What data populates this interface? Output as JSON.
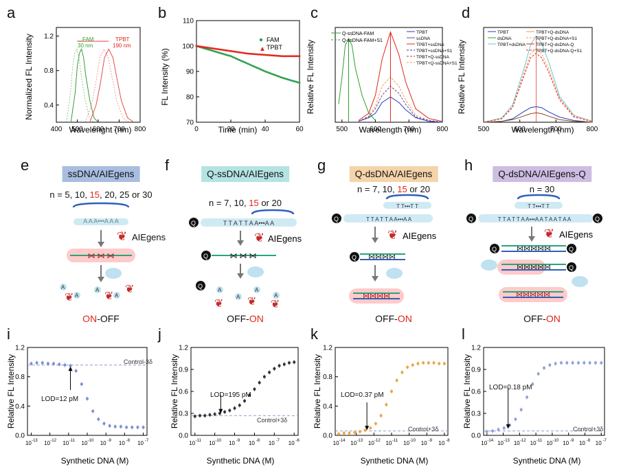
{
  "panels": {
    "a": {
      "label": "a",
      "ylabel": "Normalized FL Intensity",
      "xlabel": "Wavelenght (nm)",
      "xticks": [
        "400",
        "500",
        "600",
        "700",
        "800"
      ],
      "yticks": [
        "0.4",
        "0.8",
        "1.2"
      ],
      "ann_fam": "FAM",
      "ann_fam_nm": "30 nm",
      "ann_tpbt": "TPBT",
      "ann_tpbt_nm": "190 nm"
    },
    "b": {
      "label": "b",
      "ylabel": "FL Intensity (%)",
      "xlabel": "Time (min)",
      "xticks": [
        "0",
        "20",
        "40",
        "60"
      ],
      "yticks": [
        "70",
        "80",
        "90",
        "100",
        "110"
      ],
      "legend": [
        "FAM",
        "TPBT"
      ]
    },
    "c": {
      "label": "c",
      "ylabel": "Relative FL Intensity",
      "xlabel": "Wavelength (nm)",
      "xticks": [
        "500",
        "600",
        "700",
        "800"
      ],
      "legend_left": [
        "Q-ssDNA-FAM",
        "Q-ssDNA-FAM+S1"
      ],
      "legend_right": [
        "TPBT",
        "ssDNA",
        "TPBT+ssDNA",
        "TPBT+ssDNA+S1",
        "TPBT+Q-ssDNA",
        "TPBT+Q-ssDNA+S1"
      ]
    },
    "d": {
      "label": "d",
      "ylabel": "Relative FL Intensity",
      "xlabel": "Wavelength (nm)",
      "xticks": [
        "500",
        "600",
        "700",
        "800"
      ],
      "legend_left": [
        "TPBT",
        "dsDNA",
        "TPBT+dsDNA"
      ],
      "legend_right": [
        "TPBT+Q-dsDNA",
        "TPBT+Q-dsDNA+S1",
        "TPBT+Q-dsDNA-Q",
        "TPBT+Q-dsDNA-Q+S1"
      ]
    },
    "e": {
      "label": "e",
      "title": "ssDNA/AIEgens",
      "n_prefix": "n = 5, 10, ",
      "n_red": "15",
      "n_suffix": ", 20, 25 or 30",
      "seq": "A A A•••A A A",
      "aiegens": "AIEgens",
      "on": "ON",
      "off": "-OFF"
    },
    "f": {
      "label": "f",
      "title": "Q-ssDNA/AIEgens",
      "n_prefix": "n = 7, 10, ",
      "n_red": "15",
      "n_suffix": " or 20",
      "seq": "T T A T T A A•••A A",
      "aiegens": "AIEgens",
      "off": "OFF-",
      "on": "ON"
    },
    "g": {
      "label": "g",
      "title": "Q-dsDNA/AIEgens",
      "n_prefix": "n = 7, 10, ",
      "n_red": "15",
      "n_suffix": " or 20",
      "seq": "T T A T T A A•••A A",
      "top": "T T•••T T",
      "aiegens": "AIEgens",
      "off": "OFF-",
      "on": "ON"
    },
    "h": {
      "label": "h",
      "title": "Q-dsDNA/AIEgens-Q",
      "n_text": "n = 30",
      "seq": "T T A T T A A•••A A T A A T A A",
      "top": "T T•••T T",
      "aiegens": "AIEgens",
      "off": "OFF-",
      "on": "ON"
    },
    "i": {
      "label": "i",
      "ylabel": "Relative FL Intensity",
      "xlabel": "Synthetic DNA (M)",
      "yticks": [
        "0.0",
        "0.4",
        "0.8",
        "1.2"
      ],
      "control": "Control-3δ",
      "lod": "LOD=12 pM"
    },
    "j": {
      "label": "j",
      "ylabel": "Relative FL Intensity",
      "xlabel": "Synthetic DNA (M)",
      "yticks": [
        "0.0",
        "0.3",
        "0.6",
        "0.9",
        "1.2"
      ],
      "control": "Control+3δ",
      "lod": "LOD=195 pM"
    },
    "k": {
      "label": "k",
      "ylabel": "Relative FL Intensity",
      "xlabel": "Synthetic DNA (M)",
      "yticks": [
        "0.0",
        "0.4",
        "0.8",
        "1.2"
      ],
      "control": "Control+3δ",
      "lod": "LOD=0.37 pM"
    },
    "l": {
      "label": "l",
      "ylabel": "Relative FL Intensity",
      "xlabel": "Synthetic DNA (M)",
      "yticks": [
        "0.0",
        "0.3",
        "0.6",
        "0.9",
        "1.2"
      ],
      "control": "Control+3δ",
      "lod": "LOD=0.18 pM"
    }
  },
  "chart_data": [
    {
      "id": "a",
      "type": "line",
      "xlim": [
        400,
        800
      ],
      "ylim": [
        0.2,
        1.3
      ],
      "series": [
        {
          "name": "FAM",
          "color": "#3a9a3a",
          "x": [
            470,
            490,
            500,
            510,
            520,
            530,
            540,
            560,
            580,
            600
          ],
          "y": [
            0.2,
            0.55,
            0.85,
            1.0,
            1.05,
            0.95,
            0.75,
            0.45,
            0.25,
            0.2
          ]
        },
        {
          "name": "TPBT",
          "color": "#e05050",
          "x": [
            560,
            590,
            610,
            630,
            650,
            670,
            690,
            710,
            740,
            770
          ],
          "y": [
            0.2,
            0.4,
            0.65,
            0.95,
            1.05,
            0.95,
            0.7,
            0.45,
            0.25,
            0.2
          ]
        }
      ]
    },
    {
      "id": "b",
      "type": "scatter",
      "xlim": [
        0,
        60
      ],
      "ylim": [
        70,
        110
      ],
      "series": [
        {
          "name": "FAM",
          "color": "#2e9e4e",
          "x": [
            0,
            10,
            20,
            30,
            40,
            50,
            60
          ],
          "y": [
            100,
            98,
            96,
            93,
            90,
            87.5,
            85.5
          ]
        },
        {
          "name": "TPBT",
          "color": "#e0251b",
          "x": [
            0,
            10,
            20,
            30,
            40,
            50,
            60
          ],
          "y": [
            100,
            99,
            98,
            97,
            96.5,
            96,
            96
          ]
        }
      ]
    },
    {
      "id": "c",
      "type": "line",
      "xlim": [
        480,
        800
      ],
      "ylim": [
        0,
        1.05
      ],
      "series": [
        {
          "name": "Q-ssDNA-FAM",
          "color": "#2e9e2e",
          "x": [
            490,
            500,
            510,
            520,
            530,
            540,
            560,
            580,
            600
          ],
          "y": [
            0.2,
            0.5,
            0.85,
            0.93,
            0.85,
            0.6,
            0.3,
            0.1,
            0.02
          ]
        },
        {
          "name": "TPBT+ssDNA",
          "color": "#e0251b",
          "x": [
            550,
            580,
            600,
            620,
            645,
            670,
            690,
            720,
            760,
            800
          ],
          "y": [
            0.02,
            0.1,
            0.3,
            0.7,
            1.0,
            0.75,
            0.45,
            0.15,
            0.04,
            0.01
          ]
        },
        {
          "name": "TPBT+ssDNA+S1",
          "color": "#f39a4a",
          "x": [
            550,
            580,
            600,
            620,
            645,
            670,
            690,
            720,
            760,
            800
          ],
          "y": [
            0.01,
            0.07,
            0.18,
            0.4,
            0.5,
            0.4,
            0.25,
            0.08,
            0.02,
            0.0
          ]
        },
        {
          "name": "TPBT+Q-ssDNA",
          "color": "#6b3f9a",
          "x": [
            550,
            580,
            600,
            620,
            645,
            670,
            690,
            720,
            760,
            800
          ],
          "y": [
            0.01,
            0.06,
            0.15,
            0.3,
            0.4,
            0.32,
            0.2,
            0.06,
            0.02,
            0.0
          ]
        },
        {
          "name": "ssDNA",
          "color": "#1f3fbf",
          "x": [
            550,
            580,
            600,
            620,
            645,
            670,
            690,
            720,
            760,
            800
          ],
          "y": [
            0.01,
            0.05,
            0.1,
            0.22,
            0.28,
            0.22,
            0.14,
            0.05,
            0.01,
            0.0
          ]
        }
      ]
    },
    {
      "id": "d",
      "type": "line",
      "xlim": [
        500,
        800
      ],
      "ylim": [
        0,
        1.1
      ],
      "series": [
        {
          "name": "TPBT+Q-dsDNA-Q+S1",
          "color": "#6fc3d8",
          "x": [
            500,
            550,
            580,
            610,
            630,
            645,
            660,
            680,
            710,
            750,
            800
          ],
          "y": [
            0.0,
            0.05,
            0.2,
            0.6,
            0.9,
            1.0,
            0.92,
            0.7,
            0.3,
            0.08,
            0.01
          ]
        },
        {
          "name": "TPBT+Q-dsDNA+S1",
          "color": "#f39a4a",
          "x": [
            500,
            550,
            580,
            610,
            630,
            645,
            660,
            680,
            710,
            750,
            800
          ],
          "y": [
            0.0,
            0.04,
            0.18,
            0.55,
            0.8,
            0.85,
            0.8,
            0.62,
            0.28,
            0.07,
            0.01
          ]
        },
        {
          "name": "TPBT+Q-dsDNA-Q",
          "color": "#e0251b",
          "x": [
            500,
            550,
            580,
            610,
            630,
            645,
            660,
            680,
            710,
            750,
            800
          ],
          "y": [
            0.0,
            0.04,
            0.17,
            0.52,
            0.75,
            0.8,
            0.75,
            0.58,
            0.26,
            0.06,
            0.01
          ]
        },
        {
          "name": "TPBT",
          "color": "#1f3fbf",
          "x": [
            500,
            550,
            580,
            610,
            630,
            645,
            660,
            680,
            710,
            750,
            800
          ],
          "y": [
            0.0,
            0.01,
            0.04,
            0.12,
            0.17,
            0.18,
            0.17,
            0.12,
            0.06,
            0.02,
            0.0
          ]
        },
        {
          "name": "TPBT+Q-dsDNA",
          "color": "#8a4a1a",
          "x": [
            500,
            550,
            580,
            610,
            630,
            645,
            660,
            680,
            710,
            750,
            800
          ],
          "y": [
            0.0,
            0.01,
            0.03,
            0.07,
            0.1,
            0.11,
            0.1,
            0.07,
            0.03,
            0.01,
            0.0
          ]
        }
      ]
    },
    {
      "id": "i",
      "type": "scatter",
      "xlog": true,
      "xlim": [
        -13.2,
        -6.8
      ],
      "ylim": [
        0,
        1.2
      ],
      "xticks": [
        -13,
        -12,
        -11,
        -10,
        -9,
        -8,
        -7
      ],
      "color": "#7b8ed6",
      "control": 0.96,
      "lod_x": -10.9,
      "x": [
        -13,
        -12.7,
        -12.4,
        -12.1,
        -11.8,
        -11.5,
        -11.2,
        -10.9,
        -10.6,
        -10.3,
        -10,
        -9.7,
        -9.4,
        -9.1,
        -8.8,
        -8.5,
        -8.2,
        -7.9,
        -7.6,
        -7.3,
        -7.0
      ],
      "y": [
        0.98,
        0.99,
        0.99,
        0.98,
        0.98,
        0.97,
        0.96,
        0.95,
        0.88,
        0.7,
        0.5,
        0.33,
        0.22,
        0.16,
        0.13,
        0.12,
        0.12,
        0.11,
        0.11,
        0.11,
        0.11
      ]
    },
    {
      "id": "j",
      "type": "scatter",
      "xlog": true,
      "xlim": [
        -11.2,
        -5.8
      ],
      "ylim": [
        0,
        1.2
      ],
      "xticks": [
        -11,
        -10,
        -9,
        -8,
        -7,
        -6
      ],
      "color": "#333333",
      "control": 0.27,
      "lod_x": -9.7,
      "x": [
        -11,
        -10.75,
        -10.5,
        -10.25,
        -10,
        -9.75,
        -9.5,
        -9.25,
        -9,
        -8.75,
        -8.5,
        -8.25,
        -8,
        -7.75,
        -7.5,
        -7.25,
        -7,
        -6.75,
        -6.5,
        -6.25,
        -6
      ],
      "y": [
        0.26,
        0.27,
        0.27,
        0.28,
        0.29,
        0.3,
        0.32,
        0.34,
        0.37,
        0.41,
        0.47,
        0.55,
        0.63,
        0.72,
        0.8,
        0.86,
        0.91,
        0.95,
        0.97,
        0.99,
        1.0
      ]
    },
    {
      "id": "k",
      "type": "scatter",
      "xlog": true,
      "xlim": [
        -14.2,
        -7.8
      ],
      "ylim": [
        0,
        1.2
      ],
      "xticks": [
        -14,
        -13,
        -12,
        -11,
        -10,
        -9,
        -8
      ],
      "color": "#e7a64a",
      "control": 0.06,
      "lod_x": -12.4,
      "x": [
        -14,
        -13.7,
        -13.4,
        -13.1,
        -12.8,
        -12.5,
        -12.2,
        -11.9,
        -11.6,
        -11.3,
        -11,
        -10.7,
        -10.4,
        -10.1,
        -9.8,
        -9.5,
        -9.2,
        -8.9,
        -8.6,
        -8.3,
        -8.0
      ],
      "y": [
        0.02,
        0.03,
        0.03,
        0.04,
        0.05,
        0.07,
        0.1,
        0.16,
        0.27,
        0.42,
        0.6,
        0.75,
        0.86,
        0.93,
        0.96,
        0.98,
        0.99,
        0.99,
        0.99,
        0.98,
        0.98
      ]
    },
    {
      "id": "l",
      "type": "scatter",
      "xlog": true,
      "xlim": [
        -14.2,
        -6.8
      ],
      "ylim": [
        0,
        1.2
      ],
      "xticks": [
        -14,
        -13,
        -12,
        -11,
        -10,
        -9,
        -8,
        -7
      ],
      "color": "#8ea2d8",
      "control": 0.06,
      "lod_x": -12.7,
      "x": [
        -14,
        -13.65,
        -13.3,
        -12.95,
        -12.6,
        -12.25,
        -11.9,
        -11.55,
        -11.2,
        -10.85,
        -10.5,
        -10.15,
        -9.8,
        -9.45,
        -9.1,
        -8.75,
        -8.4,
        -8.05,
        -7.7,
        -7.35,
        -7.0
      ],
      "y": [
        0.05,
        0.06,
        0.08,
        0.1,
        0.14,
        0.22,
        0.35,
        0.52,
        0.7,
        0.84,
        0.92,
        0.96,
        0.98,
        0.99,
        0.99,
        0.99,
        0.99,
        0.99,
        0.99,
        0.99,
        0.99
      ]
    }
  ]
}
